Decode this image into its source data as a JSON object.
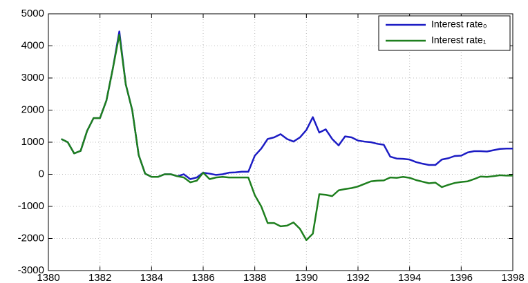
{
  "chart_data": {
    "type": "line",
    "x": [
      1380.5,
      1380.75,
      1381,
      1381.25,
      1381.5,
      1381.75,
      1382,
      1382.25,
      1382.5,
      1382.75,
      1383,
      1383.25,
      1383.5,
      1383.75,
      1384,
      1384.25,
      1384.5,
      1384.75,
      1385,
      1385.25,
      1385.5,
      1385.75,
      1386,
      1386.25,
      1386.5,
      1386.75,
      1387,
      1387.25,
      1387.5,
      1387.75,
      1388,
      1388.25,
      1388.5,
      1388.75,
      1389,
      1389.25,
      1389.5,
      1389.75,
      1390,
      1390.25,
      1390.5,
      1390.75,
      1391,
      1391.25,
      1391.5,
      1391.75,
      1392,
      1392.25,
      1392.5,
      1392.75,
      1393,
      1393.25,
      1393.5,
      1393.75,
      1394,
      1394.25,
      1394.5,
      1394.75,
      1395,
      1395.25,
      1395.5,
      1395.75,
      1396,
      1396.25,
      1396.5,
      1396.75,
      1397,
      1397.25,
      1397.5,
      1397.75,
      1398
    ],
    "series": [
      {
        "name": "Interest rate₀",
        "color": "#1c1cc4",
        "values": [
          1100,
          1000,
          650,
          730,
          1350,
          1750,
          1750,
          2300,
          3300,
          4450,
          2800,
          2000,
          600,
          20,
          -80,
          -80,
          0,
          0,
          -60,
          0,
          -150,
          -100,
          50,
          20,
          -20,
          0,
          50,
          60,
          80,
          80,
          580,
          800,
          1100,
          1150,
          1250,
          1100,
          1020,
          1150,
          1380,
          1780,
          1300,
          1400,
          1100,
          900,
          1180,
          1150,
          1050,
          1020,
          1000,
          950,
          920,
          550,
          490,
          480,
          460,
          380,
          330,
          290,
          290,
          460,
          500,
          570,
          580,
          680,
          720,
          720,
          710,
          750,
          790,
          800,
          800
        ]
      },
      {
        "name": "Interest rate₁",
        "color": "#1e7f1e",
        "values": [
          1100,
          1000,
          650,
          730,
          1350,
          1750,
          1750,
          2300,
          3300,
          4350,
          2800,
          2000,
          600,
          20,
          -80,
          -80,
          0,
          0,
          -60,
          -100,
          -250,
          -200,
          50,
          -150,
          -100,
          -80,
          -100,
          -100,
          -100,
          -100,
          -650,
          -1000,
          -1520,
          -1520,
          -1620,
          -1600,
          -1500,
          -1700,
          -2050,
          -1850,
          -620,
          -640,
          -680,
          -500,
          -460,
          -430,
          -380,
          -300,
          -220,
          -200,
          -190,
          -100,
          -110,
          -80,
          -110,
          -180,
          -230,
          -280,
          -260,
          -400,
          -330,
          -270,
          -240,
          -220,
          -150,
          -70,
          -80,
          -60,
          -30,
          -40,
          -40
        ]
      }
    ],
    "xlim": [
      1380,
      1398
    ],
    "xticks": [
      1380,
      1382,
      1384,
      1386,
      1388,
      1390,
      1392,
      1394,
      1396,
      1398
    ],
    "ylim": [
      -3000,
      5000
    ],
    "yticks": [
      -3000,
      -2000,
      -1000,
      0,
      1000,
      2000,
      3000,
      4000,
      5000
    ],
    "grid": true,
    "legend": "top-right"
  }
}
